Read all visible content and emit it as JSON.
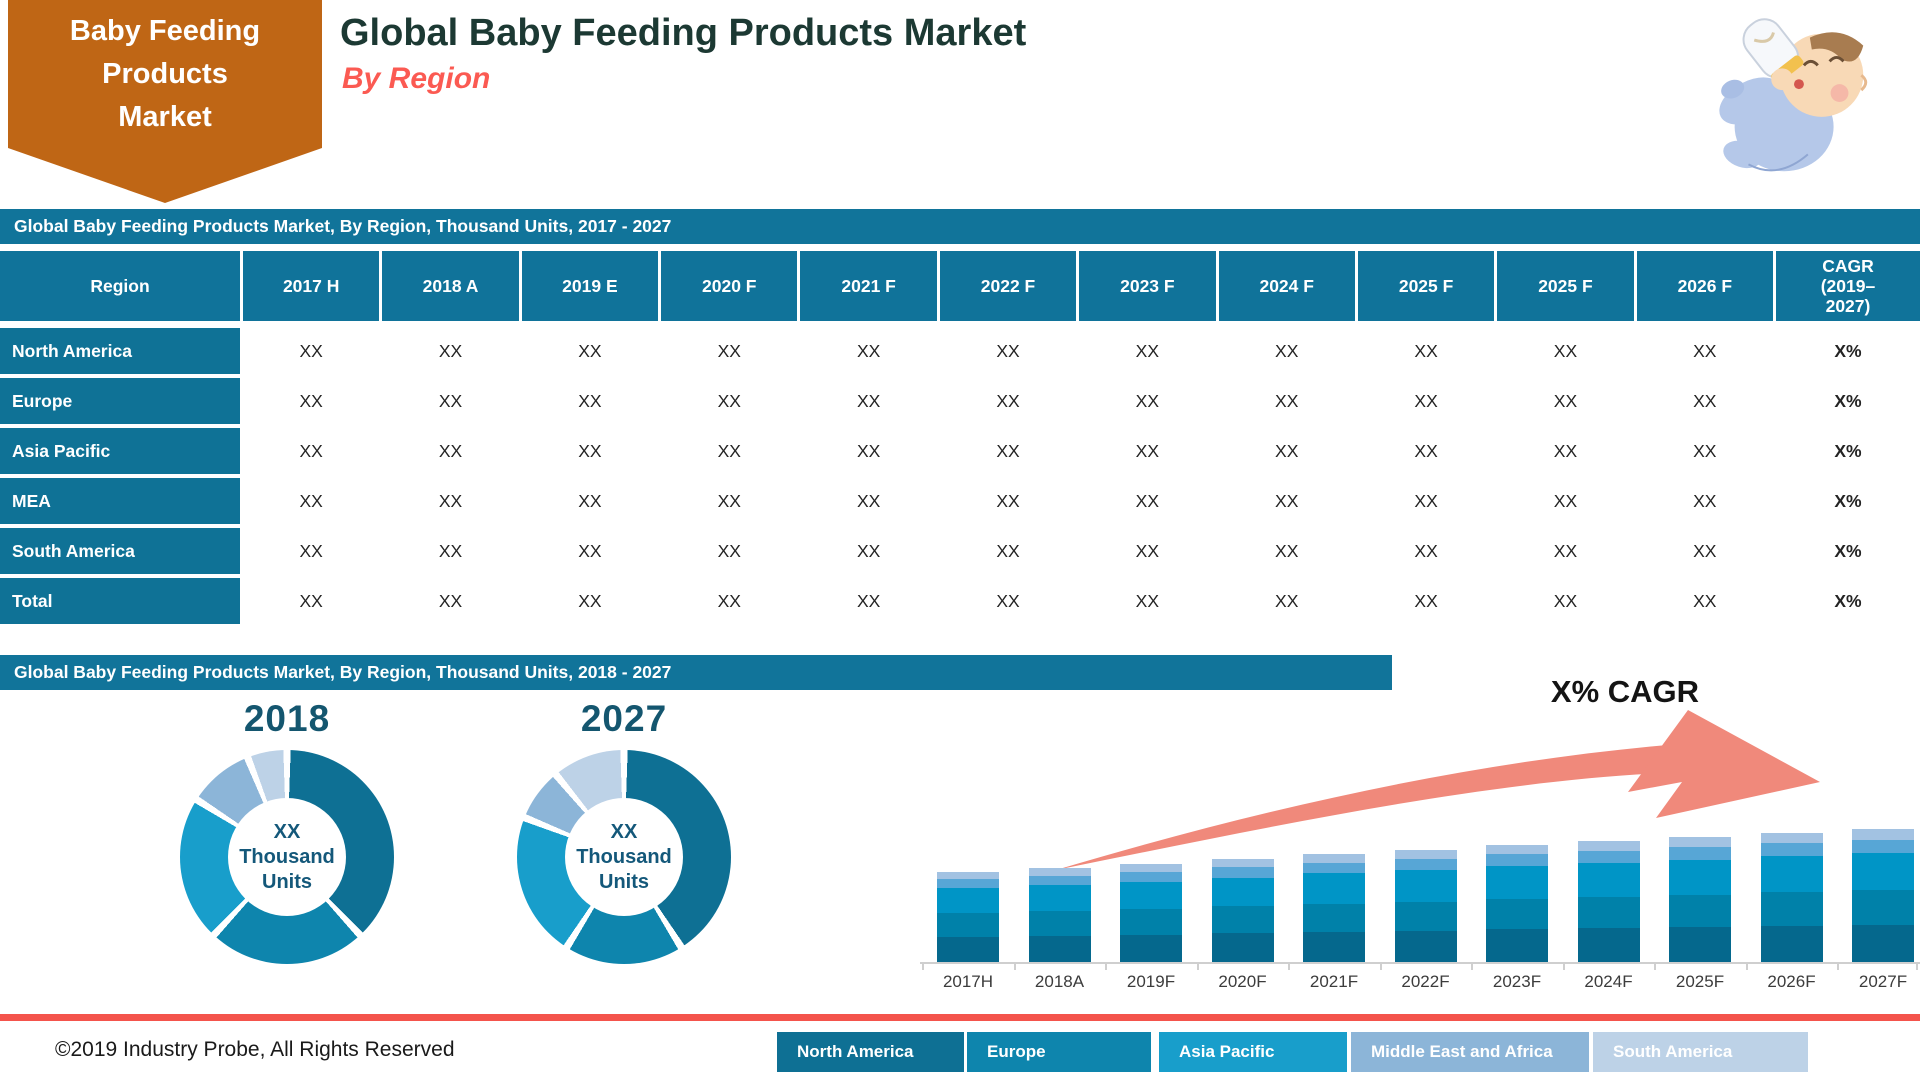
{
  "ribbon": {
    "lines": [
      "Baby Feeding",
      "Products",
      "Market"
    ]
  },
  "header": {
    "title": "Global Baby Feeding Products Market",
    "subtitle": "By Region"
  },
  "table_section": {
    "strip_title": "Global Baby Feeding Products Market, By Region, Thousand Units, 2017 - 2027",
    "columns": [
      "Region",
      "2017 H",
      "2018 A",
      "2019 E",
      "2020 F",
      "2021 F",
      "2022 F",
      "2023 F",
      "2024 F",
      "2025 F",
      "2025 F",
      "2026 F",
      "CAGR\n(2019–\n2027)"
    ],
    "rows": [
      {
        "region": "North America",
        "values": [
          "XX",
          "XX",
          "XX",
          "XX",
          "XX",
          "XX",
          "XX",
          "XX",
          "XX",
          "XX",
          "XX"
        ],
        "cagr": "X%"
      },
      {
        "region": "Europe",
        "values": [
          "XX",
          "XX",
          "XX",
          "XX",
          "XX",
          "XX",
          "XX",
          "XX",
          "XX",
          "XX",
          "XX"
        ],
        "cagr": "X%"
      },
      {
        "region": "Asia Pacific",
        "values": [
          "XX",
          "XX",
          "XX",
          "XX",
          "XX",
          "XX",
          "XX",
          "XX",
          "XX",
          "XX",
          "XX"
        ],
        "cagr": "X%"
      },
      {
        "region": "MEA",
        "values": [
          "XX",
          "XX",
          "XX",
          "XX",
          "XX",
          "XX",
          "XX",
          "XX",
          "XX",
          "XX",
          "XX"
        ],
        "cagr": "X%"
      },
      {
        "region": "South America",
        "values": [
          "XX",
          "XX",
          "XX",
          "XX",
          "XX",
          "XX",
          "XX",
          "XX",
          "XX",
          "XX",
          "XX"
        ],
        "cagr": "X%"
      },
      {
        "region": "Total",
        "values": [
          "XX",
          "XX",
          "XX",
          "XX",
          "XX",
          "XX",
          "XX",
          "XX",
          "XX",
          "XX",
          "XX"
        ],
        "cagr": "X%"
      }
    ]
  },
  "chart_section": {
    "strip_title": "Global Baby Feeding Products Market, By Region, Thousand Units, 2018 - 2027",
    "cagr_annotation": "X% CAGR"
  },
  "chart_data": [
    {
      "type": "pie",
      "variant": "donut",
      "title": "2018",
      "center_label_lines": [
        "XX",
        "Thousand",
        "Units"
      ],
      "labels": [
        "North America",
        "Europe",
        "Asia Pacific",
        "Middle East and Africa",
        "South America"
      ],
      "values_pct": [
        38,
        24,
        22,
        10,
        6
      ]
    },
    {
      "type": "pie",
      "variant": "donut",
      "title": "2027",
      "center_label_lines": [
        "XX",
        "Thousand",
        "Units"
      ],
      "labels": [
        "North America",
        "Europe",
        "Asia Pacific",
        "Middle East and Africa",
        "South America"
      ],
      "values_pct": [
        41,
        18,
        22,
        8,
        11
      ]
    },
    {
      "type": "bar",
      "stacked": true,
      "title": "Global Baby Feeding Products Market, By Region, Thousand Units, 2018 - 2027",
      "categories": [
        "2017H",
        "2018A",
        "2019F",
        "2020F",
        "2021F",
        "2022F",
        "2023F",
        "2024F",
        "2025F",
        "2026F",
        "2027F"
      ],
      "series_names": [
        "North America",
        "Europe",
        "Asia Pacific",
        "Middle East and Africa",
        "South America"
      ],
      "relative_totals": [
        90,
        94,
        98,
        103,
        108,
        112,
        117,
        121,
        125,
        129,
        133
      ],
      "stack_shares_pct": [
        28,
        26,
        28,
        10,
        8
      ]
    }
  ],
  "legend": [
    {
      "label": "North America",
      "color": "#0e7094"
    },
    {
      "label": "Europe",
      "color": "#0e85ad"
    },
    {
      "label": "Asia Pacific",
      "color": "#189ecb"
    },
    {
      "label": "Middle East and Africa",
      "color": "#8cb5d8"
    },
    {
      "label": "South America",
      "color": "#bdd2e7"
    }
  ],
  "footer": {
    "copyright": "©2019 Industry Probe, All Rights Reserved"
  },
  "colors": {
    "ribbon_orange": "#bf6615",
    "title_dark": "#1c3933",
    "accent_red": "#fb5a52",
    "strip_teal": "#11749a",
    "table_teal": "#0f7296",
    "arrow_salmon": "#f0897b",
    "footer_line_red": "#f4544c",
    "bar_palette": [
      "#05688d",
      "#0081a9",
      "#0095c6",
      "#57a6d6",
      "#a2c2e2"
    ],
    "legend_palette": [
      "#0e7094",
      "#0e85ad",
      "#189ecb",
      "#8cb5d8",
      "#bdd2e7"
    ]
  }
}
